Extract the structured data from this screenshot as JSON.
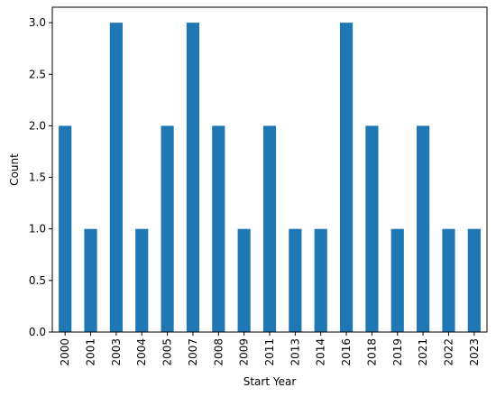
{
  "chart_data": {
    "type": "bar",
    "categories": [
      "2000",
      "2001",
      "2003",
      "2004",
      "2005",
      "2007",
      "2008",
      "2009",
      "2011",
      "2013",
      "2014",
      "2016",
      "2018",
      "2019",
      "2021",
      "2022",
      "2023"
    ],
    "values": [
      2,
      1,
      3,
      1,
      2,
      3,
      2,
      1,
      2,
      1,
      1,
      3,
      2,
      1,
      2,
      1,
      1
    ],
    "xlabel": "Start Year",
    "ylabel": "Count",
    "ylim": [
      0,
      3.15
    ],
    "yticks": [
      "0.0",
      "0.5",
      "1.0",
      "1.5",
      "2.0",
      "2.5",
      "3.0"
    ],
    "grid": false,
    "bar_color": "#1f77b4"
  }
}
